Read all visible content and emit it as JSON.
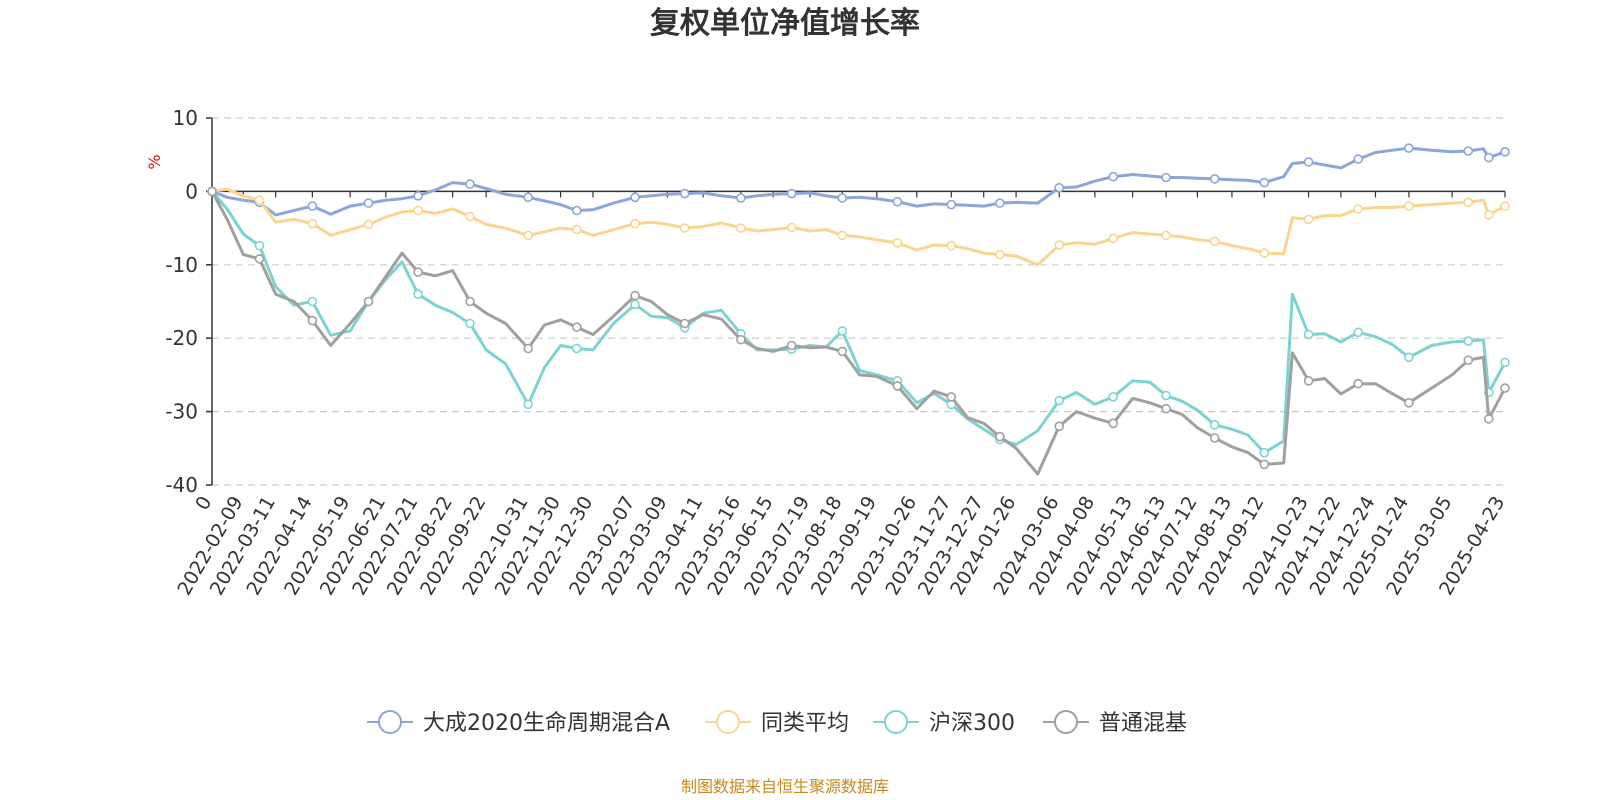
{
  "chart_data": {
    "type": "line",
    "title": "复权单位净值增长率",
    "ylabel": "%",
    "xlabel": "",
    "ylim": [
      -40,
      10
    ],
    "yticks": [
      10,
      0,
      -10,
      -20,
      -30,
      -40
    ],
    "grid": true,
    "legend_position": "bottom",
    "x_tick_labels": [
      "0",
      "2022-02-09",
      "2022-03-11",
      "2022-04-14",
      "2022-05-19",
      "2022-06-21",
      "2022-07-21",
      "2022-08-22",
      "2022-09-22",
      "2022-10-31",
      "2022-11-30",
      "2022-12-30",
      "2023-02-07",
      "2023-03-09",
      "2023-04-11",
      "2023-05-16",
      "2023-06-15",
      "2023-07-19",
      "2023-08-18",
      "2023-09-19",
      "2023-10-26",
      "2023-11-27",
      "2023-12-27",
      "2024-01-26",
      "2024-03-06",
      "2024-04-08",
      "2024-05-13",
      "2024-06-13",
      "2024-07-12",
      "2024-08-13",
      "2024-09-12",
      "2024-10-23",
      "2024-11-22",
      "2024-12-24",
      "2025-01-24",
      "2025-03-05",
      "2025-04-23"
    ],
    "x": [
      "0",
      "2022-01-25",
      "2022-02-09",
      "2022-02-24",
      "2022-03-11",
      "2022-03-28",
      "2022-04-14",
      "2022-05-01",
      "2022-05-19",
      "2022-06-05",
      "2022-06-21",
      "2022-07-06",
      "2022-07-21",
      "2022-08-06",
      "2022-08-22",
      "2022-09-07",
      "2022-09-22",
      "2022-10-10",
      "2022-10-31",
      "2022-11-15",
      "2022-11-30",
      "2022-12-15",
      "2022-12-30",
      "2023-01-18",
      "2023-02-07",
      "2023-02-22",
      "2023-03-09",
      "2023-03-25",
      "2023-04-11",
      "2023-04-28",
      "2023-05-16",
      "2023-05-31",
      "2023-06-15",
      "2023-07-02",
      "2023-07-19",
      "2023-08-03",
      "2023-08-18",
      "2023-09-03",
      "2023-09-19",
      "2023-10-08",
      "2023-10-26",
      "2023-11-11",
      "2023-11-27",
      "2023-12-12",
      "2023-12-27",
      "2024-01-11",
      "2024-01-26",
      "2024-02-15",
      "2024-03-06",
      "2024-03-22",
      "2024-04-08",
      "2024-04-25",
      "2024-05-13",
      "2024-05-29",
      "2024-06-13",
      "2024-06-28",
      "2024-07-12",
      "2024-07-28",
      "2024-08-13",
      "2024-08-28",
      "2024-09-12",
      "2024-09-30",
      "2024-10-08",
      "2024-10-23",
      "2024-11-07",
      "2024-11-22",
      "2024-12-08",
      "2024-12-24",
      "2025-01-08",
      "2025-01-24",
      "2025-02-14",
      "2025-03-05",
      "2025-03-20",
      "2025-04-03",
      "2025-04-08",
      "2025-04-23"
    ],
    "series": [
      {
        "name": "大成2020生命周期混合A",
        "color": "#8ba6d8",
        "values": [
          0,
          -0.8,
          -1.2,
          -1.5,
          -3.2,
          -2.6,
          -2.0,
          -3.1,
          -2.0,
          -1.6,
          -1.2,
          -1.0,
          -0.6,
          0.2,
          1.2,
          1.0,
          0.4,
          -0.4,
          -0.8,
          -1.3,
          -1.8,
          -2.6,
          -2.5,
          -1.6,
          -0.8,
          -0.6,
          -0.4,
          -0.3,
          -0.2,
          -0.6,
          -0.9,
          -0.6,
          -0.4,
          -0.3,
          -0.2,
          -0.6,
          -0.9,
          -0.8,
          -1.0,
          -1.4,
          -2.0,
          -1.7,
          -1.8,
          -1.9,
          -2.0,
          -1.6,
          -1.5,
          -1.6,
          0.5,
          0.6,
          1.4,
          2.0,
          2.3,
          2.1,
          1.9,
          1.9,
          1.8,
          1.7,
          1.6,
          1.5,
          1.2,
          2.0,
          3.8,
          4.0,
          3.6,
          3.2,
          4.4,
          5.3,
          5.6,
          5.9,
          5.6,
          5.4,
          5.5,
          5.8,
          4.6,
          5.4
        ]
      },
      {
        "name": "同类平均",
        "color": "#f9d590",
        "values": [
          0,
          0.3,
          -0.6,
          -1.2,
          -4.2,
          -3.8,
          -4.4,
          -6.0,
          -5.2,
          -4.5,
          -3.5,
          -2.8,
          -2.6,
          -3.0,
          -2.4,
          -3.4,
          -4.5,
          -5.0,
          -6.0,
          -5.5,
          -5.0,
          -5.2,
          -6.0,
          -5.2,
          -4.4,
          -4.2,
          -4.5,
          -5.0,
          -4.8,
          -4.3,
          -5.0,
          -5.4,
          -5.2,
          -4.9,
          -5.4,
          -5.2,
          -6.0,
          -6.2,
          -6.6,
          -7.0,
          -8.0,
          -7.3,
          -7.4,
          -7.8,
          -8.4,
          -8.6,
          -8.8,
          -10.0,
          -7.3,
          -7.0,
          -7.2,
          -6.4,
          -5.6,
          -5.8,
          -6.0,
          -6.2,
          -6.6,
          -6.8,
          -7.4,
          -7.8,
          -8.4,
          -8.5,
          -3.6,
          -3.8,
          -3.3,
          -3.3,
          -2.4,
          -2.2,
          -2.2,
          -2.0,
          -1.8,
          -1.6,
          -1.5,
          -1.2,
          -3.2,
          -2.0
        ]
      },
      {
        "name": "沪深300",
        "color": "#7dd3d3",
        "values": [
          0,
          -2.4,
          -5.8,
          -7.4,
          -13.0,
          -15.5,
          -15.0,
          -19.6,
          -19.0,
          -15.0,
          -12.0,
          -9.6,
          -14.0,
          -15.5,
          -16.5,
          -18.0,
          -21.6,
          -23.5,
          -29.0,
          -24.0,
          -21.0,
          -21.4,
          -21.6,
          -18.0,
          -15.4,
          -17.0,
          -17.2,
          -18.6,
          -16.6,
          -16.2,
          -19.4,
          -21.6,
          -21.6,
          -21.5,
          -21.0,
          -21.2,
          -19.0,
          -24.4,
          -25.0,
          -25.8,
          -28.8,
          -27.5,
          -29.0,
          -31.0,
          -32.4,
          -33.8,
          -34.5,
          -32.6,
          -28.5,
          -27.4,
          -29.0,
          -28.0,
          -25.8,
          -26.0,
          -27.8,
          -28.6,
          -29.8,
          -31.8,
          -32.4,
          -33.2,
          -35.6,
          -34.0,
          -14.0,
          -19.5,
          -19.4,
          -20.5,
          -19.2,
          -19.8,
          -20.8,
          -22.6,
          -21.0,
          -20.5,
          -20.4,
          -20.2,
          -27.4,
          -23.3
        ]
      },
      {
        "name": "普通混基",
        "color": "#a0a0a0",
        "values": [
          0,
          -3.8,
          -8.6,
          -9.2,
          -14.0,
          -15.0,
          -17.6,
          -21.0,
          -18.0,
          -15.0,
          -11.6,
          -8.4,
          -11.0,
          -11.5,
          -10.8,
          -15.0,
          -16.6,
          -18.0,
          -21.4,
          -18.2,
          -17.5,
          -18.5,
          -19.5,
          -17.0,
          -14.2,
          -15.0,
          -16.8,
          -18.0,
          -16.8,
          -17.4,
          -20.2,
          -21.4,
          -21.8,
          -21.0,
          -21.3,
          -21.2,
          -21.8,
          -25.0,
          -25.2,
          -26.5,
          -29.6,
          -27.2,
          -28.0,
          -30.8,
          -31.6,
          -33.4,
          -35.0,
          -38.5,
          -32.0,
          -30.0,
          -30.9,
          -31.6,
          -28.2,
          -28.8,
          -29.6,
          -30.4,
          -32.2,
          -33.6,
          -34.8,
          -35.6,
          -37.2,
          -37.0,
          -22.0,
          -25.8,
          -25.5,
          -27.6,
          -26.2,
          -26.2,
          -27.5,
          -28.8,
          -26.8,
          -25.0,
          -23.0,
          -22.6,
          -31.0,
          -26.8
        ]
      }
    ]
  },
  "footer": {
    "source_text": "制图数据来自恒生聚源数据库"
  }
}
